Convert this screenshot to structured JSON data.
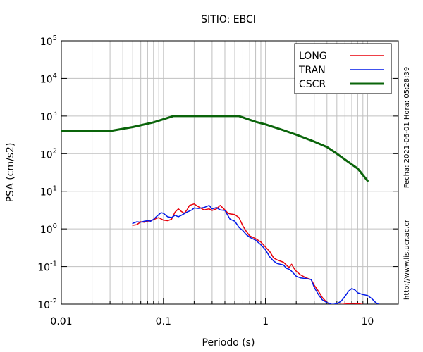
{
  "chart_data": {
    "type": "line",
    "title": "SITIO: EBCI",
    "xlabel": "Periodo (s)",
    "ylabel": "PSA (cm/s2)",
    "xscale": "log",
    "yscale": "log",
    "xlim": [
      0.01,
      20
    ],
    "ylim": [
      0.01,
      100000
    ],
    "grid": true,
    "legend_position": "top-right",
    "x_ticks": [
      {
        "value": 0.01,
        "label": "0.01"
      },
      {
        "value": 0.1,
        "label": "0.1"
      },
      {
        "value": 1,
        "label": "1"
      },
      {
        "value": 10,
        "label": "10"
      }
    ],
    "y_ticks": [
      {
        "value": 0.01,
        "base": "10",
        "exp": "-2"
      },
      {
        "value": 0.1,
        "base": "10",
        "exp": "-1"
      },
      {
        "value": 1,
        "base": "10",
        "exp": "0"
      },
      {
        "value": 10,
        "base": "10",
        "exp": "1"
      },
      {
        "value": 100,
        "base": "10",
        "exp": "2"
      },
      {
        "value": 1000,
        "base": "10",
        "exp": "3"
      },
      {
        "value": 10000,
        "base": "10",
        "exp": "4"
      },
      {
        "value": 100000,
        "base": "10",
        "exp": "5"
      }
    ],
    "side_texts": {
      "fecha": "Fecha: 2021-06-01 Hora: 05:28:39",
      "url": "http://www.lis.ucr.ac.cr"
    },
    "series": [
      {
        "name": "LONG",
        "color": "#e8000b",
        "width": 1.5,
        "points": [
          [
            0.05,
            1.25
          ],
          [
            0.055,
            1.3
          ],
          [
            0.06,
            1.55
          ],
          [
            0.065,
            1.5
          ],
          [
            0.07,
            1.6
          ],
          [
            0.075,
            1.65
          ],
          [
            0.08,
            1.75
          ],
          [
            0.085,
            1.9
          ],
          [
            0.09,
            2.0
          ],
          [
            0.1,
            1.7
          ],
          [
            0.11,
            1.65
          ],
          [
            0.12,
            1.8
          ],
          [
            0.13,
            2.8
          ],
          [
            0.14,
            3.4
          ],
          [
            0.15,
            2.9
          ],
          [
            0.16,
            2.6
          ],
          [
            0.17,
            3.2
          ],
          [
            0.18,
            4.2
          ],
          [
            0.2,
            4.6
          ],
          [
            0.22,
            3.9
          ],
          [
            0.25,
            3.2
          ],
          [
            0.28,
            3.4
          ],
          [
            0.3,
            3.1
          ],
          [
            0.33,
            3.4
          ],
          [
            0.36,
            4.2
          ],
          [
            0.4,
            3.2
          ],
          [
            0.43,
            2.6
          ],
          [
            0.45,
            2.5
          ],
          [
            0.5,
            2.4
          ],
          [
            0.55,
            2.0
          ],
          [
            0.6,
            1.2
          ],
          [
            0.65,
            0.85
          ],
          [
            0.7,
            0.65
          ],
          [
            0.8,
            0.55
          ],
          [
            0.9,
            0.45
          ],
          [
            1.0,
            0.33
          ],
          [
            1.1,
            0.25
          ],
          [
            1.2,
            0.17
          ],
          [
            1.3,
            0.15
          ],
          [
            1.5,
            0.13
          ],
          [
            1.6,
            0.11
          ],
          [
            1.7,
            0.095
          ],
          [
            1.8,
            0.115
          ],
          [
            1.9,
            0.09
          ],
          [
            2.0,
            0.075
          ],
          [
            2.2,
            0.06
          ],
          [
            2.5,
            0.05
          ],
          [
            2.8,
            0.045
          ],
          [
            3.0,
            0.032
          ],
          [
            3.3,
            0.022
          ],
          [
            3.6,
            0.015
          ],
          [
            4.0,
            0.011
          ],
          [
            4.5,
            0.0097
          ],
          [
            5.5,
            0.0098
          ],
          [
            6.5,
            0.0102
          ],
          [
            7.0,
            0.0105
          ],
          [
            8.0,
            0.0103
          ],
          [
            9.0,
            0.0098
          ]
        ]
      },
      {
        "name": "TRAN",
        "color": "#0018e8",
        "width": 1.5,
        "points": [
          [
            0.05,
            1.4
          ],
          [
            0.055,
            1.55
          ],
          [
            0.06,
            1.5
          ],
          [
            0.065,
            1.6
          ],
          [
            0.07,
            1.65
          ],
          [
            0.075,
            1.6
          ],
          [
            0.08,
            1.8
          ],
          [
            0.085,
            2.1
          ],
          [
            0.09,
            2.4
          ],
          [
            0.095,
            2.7
          ],
          [
            0.1,
            2.6
          ],
          [
            0.11,
            2.1
          ],
          [
            0.12,
            2.0
          ],
          [
            0.13,
            2.3
          ],
          [
            0.14,
            2.1
          ],
          [
            0.15,
            2.3
          ],
          [
            0.17,
            2.8
          ],
          [
            0.19,
            3.2
          ],
          [
            0.2,
            3.6
          ],
          [
            0.22,
            3.5
          ],
          [
            0.25,
            3.7
          ],
          [
            0.28,
            4.2
          ],
          [
            0.3,
            3.4
          ],
          [
            0.33,
            3.7
          ],
          [
            0.36,
            3.2
          ],
          [
            0.4,
            3.1
          ],
          [
            0.45,
            1.8
          ],
          [
            0.5,
            1.6
          ],
          [
            0.55,
            1.1
          ],
          [
            0.6,
            0.9
          ],
          [
            0.65,
            0.7
          ],
          [
            0.7,
            0.6
          ],
          [
            0.8,
            0.5
          ],
          [
            0.9,
            0.38
          ],
          [
            1.0,
            0.28
          ],
          [
            1.1,
            0.18
          ],
          [
            1.2,
            0.14
          ],
          [
            1.3,
            0.12
          ],
          [
            1.5,
            0.11
          ],
          [
            1.6,
            0.09
          ],
          [
            1.7,
            0.085
          ],
          [
            1.8,
            0.075
          ],
          [
            2.0,
            0.055
          ],
          [
            2.2,
            0.05
          ],
          [
            2.5,
            0.048
          ],
          [
            2.8,
            0.045
          ],
          [
            3.0,
            0.028
          ],
          [
            3.3,
            0.018
          ],
          [
            3.6,
            0.013
          ],
          [
            4.0,
            0.011
          ],
          [
            4.5,
            0.0098
          ],
          [
            5.0,
            0.0102
          ],
          [
            5.5,
            0.012
          ],
          [
            6.0,
            0.016
          ],
          [
            6.5,
            0.022
          ],
          [
            7.0,
            0.026
          ],
          [
            7.5,
            0.024
          ],
          [
            8.0,
            0.02
          ],
          [
            9.0,
            0.018
          ],
          [
            10.0,
            0.017
          ],
          [
            11.0,
            0.014
          ],
          [
            12.0,
            0.011
          ],
          [
            13.0,
            0.0097
          ]
        ]
      },
      {
        "name": "CSCR",
        "color": "#0a640a",
        "width": 3,
        "points": [
          [
            0.01,
            400
          ],
          [
            0.03,
            400
          ],
          [
            0.05,
            510
          ],
          [
            0.08,
            680
          ],
          [
            0.125,
            1000
          ],
          [
            0.55,
            1000
          ],
          [
            0.8,
            700
          ],
          [
            1.0,
            600
          ],
          [
            1.5,
            420
          ],
          [
            2.0,
            320
          ],
          [
            3.0,
            210
          ],
          [
            4.0,
            150
          ],
          [
            5.0,
            100
          ],
          [
            6.0,
            70
          ],
          [
            8.0,
            40
          ],
          [
            10.0,
            19
          ]
        ]
      }
    ]
  }
}
